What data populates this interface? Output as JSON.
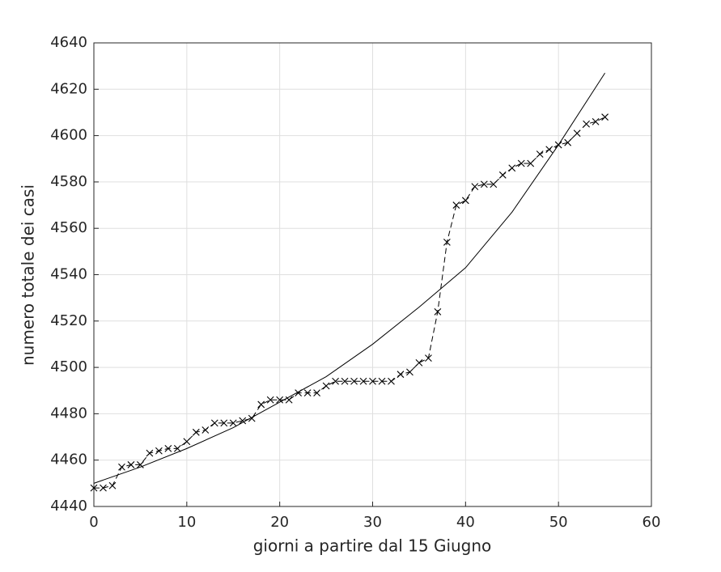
{
  "chart_data": {
    "type": "line",
    "xlabel": "giorni a partire dal 15 Giugno",
    "ylabel": "numero totale dei casi",
    "xlim": [
      0,
      60
    ],
    "xticks": [
      0,
      10,
      20,
      30,
      40,
      50,
      60
    ],
    "ylim": [
      4440,
      4640
    ],
    "yticks": [
      4440,
      4460,
      4480,
      4500,
      4520,
      4540,
      4560,
      4580,
      4600,
      4620,
      4640
    ],
    "grid": true,
    "series": [
      {
        "color": "#000000",
        "linestyle": "dashed",
        "marker": "x",
        "x": [
          0,
          1,
          2,
          3,
          4,
          5,
          6,
          7,
          8,
          9,
          10,
          11,
          12,
          13,
          14,
          15,
          16,
          17,
          18,
          19,
          20,
          21,
          22,
          23,
          24,
          25,
          26,
          27,
          28,
          29,
          30,
          31,
          32,
          33,
          34,
          35,
          36,
          37,
          38,
          39,
          40,
          41,
          42,
          43,
          44,
          45,
          46,
          47,
          48,
          49,
          50,
          51,
          52,
          53,
          54,
          55
        ],
        "values": [
          4448,
          4448,
          4449,
          4457,
          4458,
          4458,
          4463,
          4464,
          4465,
          4465,
          4468,
          4472,
          4473,
          4476,
          4476,
          4476,
          4477,
          4478,
          4484,
          4486,
          4486,
          4486,
          4489,
          4489,
          4489,
          4492,
          4494,
          4494,
          4494,
          4494,
          4494,
          4494,
          4494,
          4497,
          4498,
          4502,
          4504,
          4524,
          4554,
          4570,
          4572,
          4578,
          4579,
          4579,
          4583,
          4586,
          4588,
          4588,
          4592,
          4594,
          4596,
          4597,
          4601,
          4605,
          4606,
          4608
        ]
      },
      {
        "color": "#000000",
        "linestyle": "solid",
        "marker": "none",
        "x": [
          0,
          5,
          10,
          15,
          20,
          25,
          30,
          35,
          40,
          45,
          50,
          55
        ],
        "values": [
          4450,
          4457,
          4465,
          4474,
          4485,
          4496,
          4510,
          4526,
          4543,
          4567,
          4596,
          4627
        ]
      }
    ]
  }
}
